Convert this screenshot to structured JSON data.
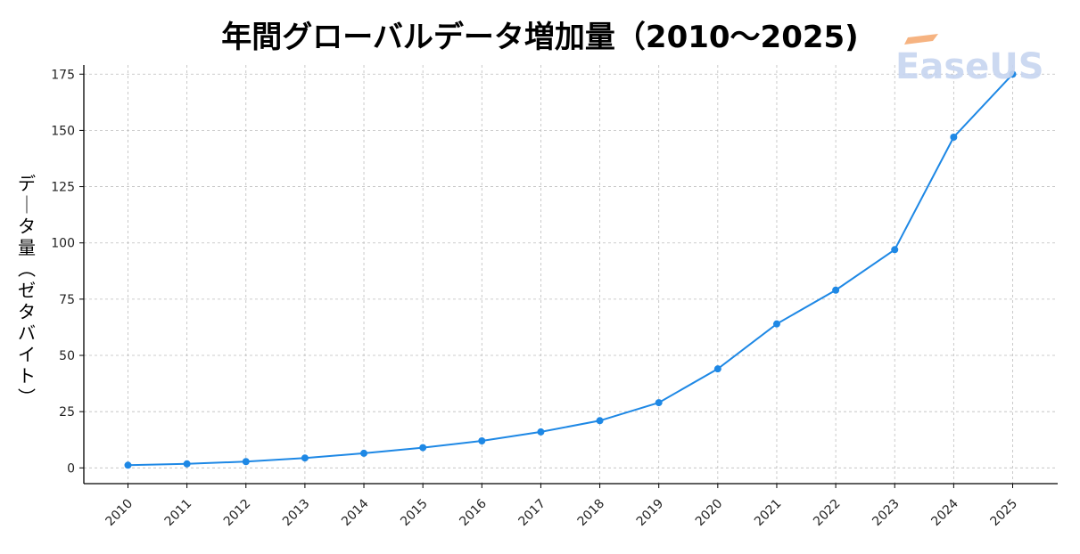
{
  "chart_data": {
    "type": "line",
    "title": "年間グローバルデータ増加量（2010～2025)",
    "xlabel": "",
    "ylabel": "データ量（ゼタバイト）",
    "categories": [
      "2010",
      "2011",
      "2012",
      "2013",
      "2014",
      "2015",
      "2016",
      "2017",
      "2018",
      "2019",
      "2020",
      "2021",
      "2022",
      "2023",
      "2024",
      "2025"
    ],
    "series": [
      {
        "values": [
          1.2,
          1.8,
          2.8,
          4.4,
          6.5,
          9,
          12,
          16,
          21,
          29,
          44,
          64,
          79,
          97,
          147,
          175
        ]
      }
    ],
    "ylim": [
      -7,
      185
    ],
    "yticks": [
      0,
      25,
      50,
      75,
      100,
      125,
      150,
      175
    ],
    "grid": true,
    "line_color": "#1e88e5"
  },
  "watermark": {
    "brand": "EaseUS",
    "accent_color": "#f5a66b",
    "text_color": "#c7d5f0"
  }
}
